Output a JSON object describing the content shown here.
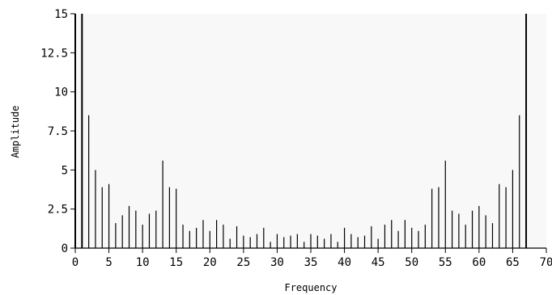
{
  "chart_data": {
    "type": "bar",
    "title": "",
    "xlabel": "Frequency",
    "ylabel": "Amplitude",
    "xlim": [
      0,
      70
    ],
    "ylim": [
      0,
      15
    ],
    "grid": false,
    "legend": "none",
    "x_ticks": [
      "0",
      "5",
      "10",
      "15",
      "20",
      "25",
      "30",
      "35",
      "40",
      "45",
      "50",
      "55",
      "60",
      "65",
      "70"
    ],
    "y_ticks": [
      "0",
      "2.5",
      "5",
      "7.5",
      "10",
      "12.5",
      "15"
    ],
    "colors": {
      "plot_background": "#f8f8f8",
      "bar": "#000000",
      "axis": "#000000"
    },
    "x": [
      0,
      1,
      2,
      3,
      4,
      5,
      6,
      7,
      8,
      9,
      10,
      11,
      12,
      13,
      14,
      15,
      16,
      17,
      18,
      19,
      20,
      21,
      22,
      23,
      24,
      25,
      26,
      27,
      28,
      29,
      30,
      31,
      32,
      33,
      34,
      35,
      36,
      37,
      38,
      39,
      40,
      41,
      42,
      43,
      44,
      45,
      46,
      47,
      48,
      49,
      50,
      51,
      52,
      53,
      54,
      55,
      56,
      57,
      58,
      59,
      60,
      61,
      62,
      63,
      64,
      65,
      66,
      67
    ],
    "values": [
      15,
      15,
      8.5,
      5.0,
      3.9,
      4.1,
      1.6,
      2.1,
      2.7,
      2.4,
      1.5,
      2.2,
      2.4,
      5.6,
      3.9,
      3.8,
      1.5,
      1.1,
      1.3,
      1.8,
      1.1,
      1.8,
      1.5,
      0.6,
      1.4,
      0.8,
      0.7,
      0.9,
      1.3,
      0.4,
      0.9,
      0.7,
      0.8,
      0.9,
      0.4,
      0.9,
      0.8,
      0.6,
      0.9,
      0.4,
      1.3,
      0.9,
      0.7,
      0.8,
      1.4,
      0.6,
      1.5,
      1.8,
      1.1,
      1.8,
      1.3,
      1.1,
      1.5,
      3.8,
      3.9,
      5.6,
      2.4,
      2.2,
      1.5,
      2.4,
      2.7,
      2.1,
      1.6,
      4.1,
      3.9,
      5.0,
      8.5,
      15
    ]
  }
}
